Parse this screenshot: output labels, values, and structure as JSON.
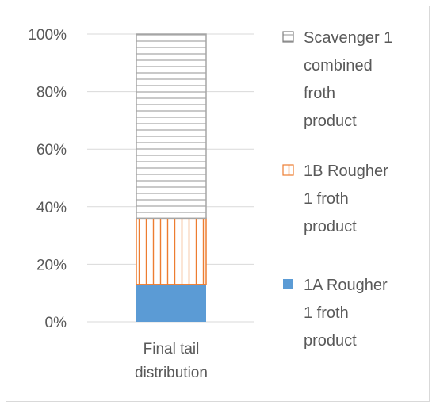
{
  "chart_data": {
    "type": "bar",
    "stacked": true,
    "percent": true,
    "categories": [
      "Final tail\ndistribution"
    ],
    "series": [
      {
        "name": "1A Rougher 1 froth product",
        "values": [
          13
        ],
        "color": "#5b9bd5",
        "pattern": "solid"
      },
      {
        "name": "1B Rougher 1 froth product",
        "values": [
          23
        ],
        "color": "#ed7d31",
        "pattern": "vertical-lines"
      },
      {
        "name": "Scavenger 1 combined froth product",
        "values": [
          64
        ],
        "color": "#a5a5a5",
        "pattern": "horizontal-lines"
      }
    ],
    "ylim": [
      0,
      100
    ],
    "yticks": [
      "0%",
      "20%",
      "40%",
      "60%",
      "80%",
      "100%"
    ],
    "grid": true,
    "legend_position": "right",
    "legend_lines": {
      "scavenger": [
        "Scavenger 1",
        "combined",
        "froth",
        "product"
      ],
      "rougher1b": [
        "1B Rougher",
        "1 froth",
        "product"
      ],
      "rougher1a": [
        "1A Rougher",
        "1 froth",
        "product"
      ]
    },
    "category_lines": [
      "Final tail",
      "distribution"
    ]
  }
}
